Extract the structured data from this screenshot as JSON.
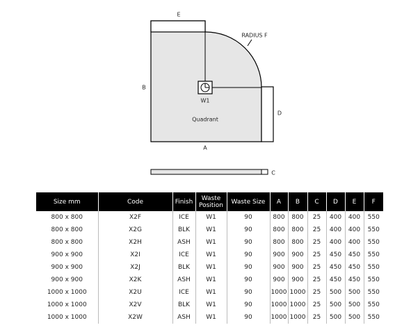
{
  "diagram": {
    "labels": {
      "e": "E",
      "b": "B",
      "radius": "RADIUS F",
      "waste": "W1",
      "shape": "Quadrant",
      "a": "A",
      "d": "D",
      "c": "C"
    }
  },
  "table": {
    "header": [
      "Size mm",
      "Code",
      "Finish",
      "Waste Position",
      "Waste Size",
      "A",
      "B",
      "C",
      "D",
      "E",
      "F"
    ],
    "rows": [
      [
        "800 x 800",
        "X2F",
        "ICE",
        "W1",
        "90",
        "800",
        "800",
        "25",
        "400",
        "400",
        "550"
      ],
      [
        "800 x 800",
        "X2G",
        "BLK",
        "W1",
        "90",
        "800",
        "800",
        "25",
        "400",
        "400",
        "550"
      ],
      [
        "800 x 800",
        "X2H",
        "ASH",
        "W1",
        "90",
        "800",
        "800",
        "25",
        "400",
        "400",
        "550"
      ],
      [
        "900 x 900",
        "X2I",
        "ICE",
        "W1",
        "90",
        "900",
        "900",
        "25",
        "450",
        "450",
        "550"
      ],
      [
        "900 x 900",
        "X2J",
        "BLK",
        "W1",
        "90",
        "900",
        "900",
        "25",
        "450",
        "450",
        "550"
      ],
      [
        "900 x 900",
        "X2K",
        "ASH",
        "W1",
        "90",
        "900",
        "900",
        "25",
        "450",
        "450",
        "550"
      ],
      [
        "1000 x 1000",
        "X2U",
        "ICE",
        "W1",
        "90",
        "1000",
        "1000",
        "25",
        "500",
        "500",
        "550"
      ],
      [
        "1000 x 1000",
        "X2V",
        "BLK",
        "W1",
        "90",
        "1000",
        "1000",
        "25",
        "500",
        "500",
        "550"
      ],
      [
        "1000 x 1000",
        "X2W",
        "ASH",
        "W1",
        "90",
        "1000",
        "1000",
        "25",
        "500",
        "500",
        "550"
      ]
    ]
  }
}
